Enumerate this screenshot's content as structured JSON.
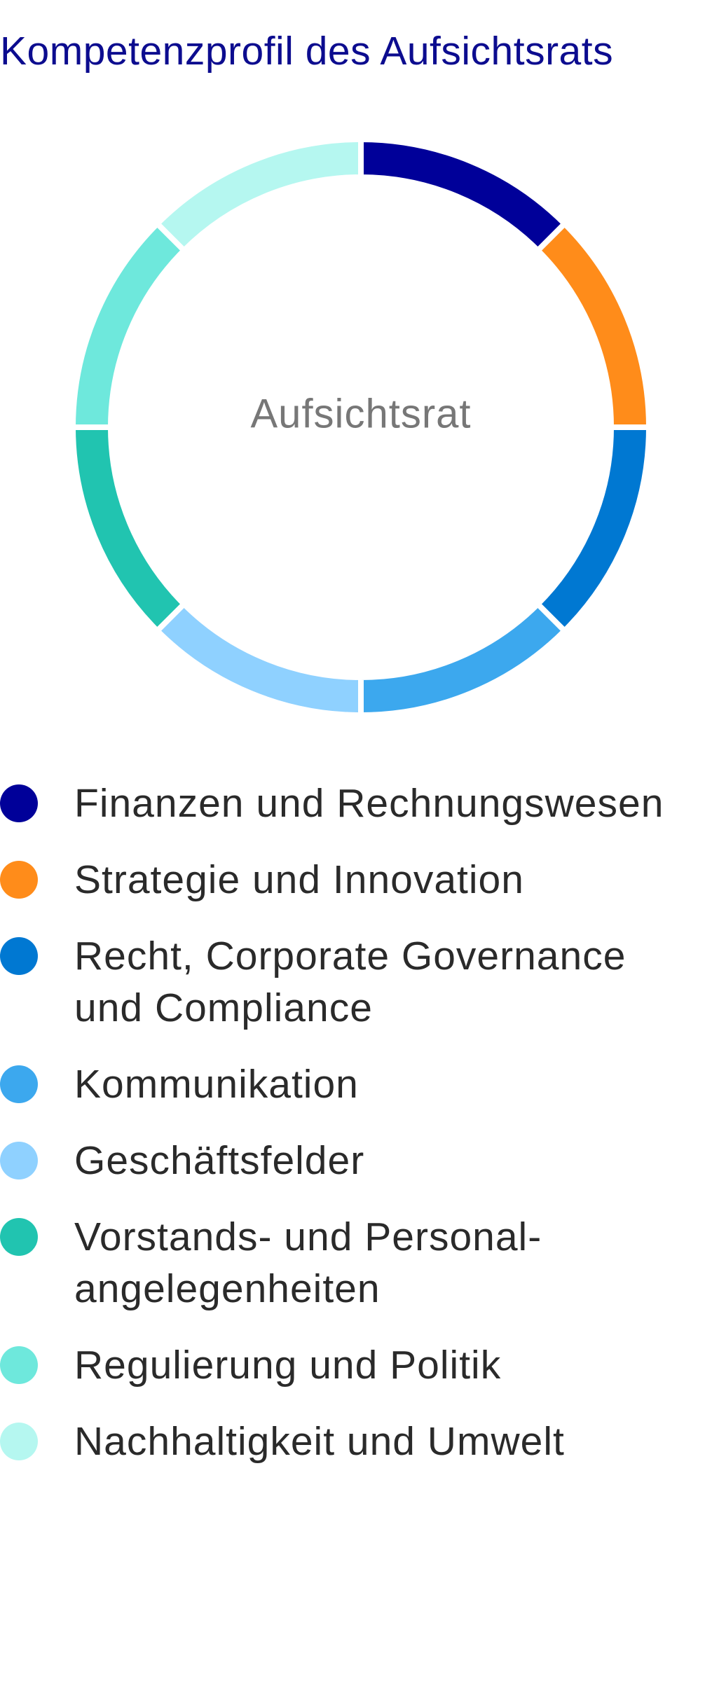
{
  "chart_data": {
    "type": "donut",
    "title": "Kompetenzprofil des Aufsichtsrats",
    "center_label": "Aufsichtsrat",
    "categories": [
      "Finanzen und Rechnungswesen",
      "Strategie und Innovation",
      "Recht, Corporate Governance und Compliance",
      "Kommunikation",
      "Geschäftsfelder",
      "Vorstands- und Personal-angelegenheiten",
      "Regulierung und Politik",
      "Nachhaltigkeit und Umwelt"
    ],
    "values": [
      12.5,
      12.5,
      12.5,
      12.5,
      12.5,
      12.5,
      12.5,
      12.5
    ],
    "colors": [
      "#000099",
      "#ff8c1a",
      "#0078d2",
      "#3ca8ee",
      "#8fd1ff",
      "#21c4b0",
      "#6ee8dc",
      "#b5f7f0"
    ]
  }
}
